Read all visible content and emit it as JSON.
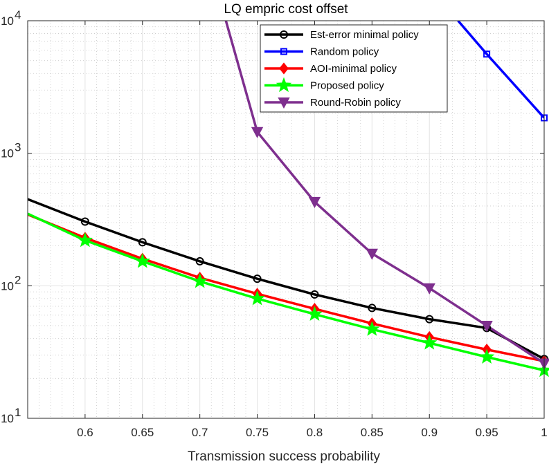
{
  "chart_data": {
    "type": "line",
    "title": "LQ empric cost offset",
    "xlabel": "Transmission success probability",
    "ylabel": "",
    "y_scale": "log",
    "xlim": [
      0.55,
      1.0
    ],
    "ylim": [
      10,
      10000
    ],
    "grid": true,
    "minor_grid": true,
    "legend_position": "top-right",
    "x_tick_labels": [
      "0.6",
      "0.65",
      "0.7",
      "0.75",
      "0.8",
      "0.85",
      "0.9",
      "0.95",
      "1"
    ],
    "y_tick_labels": [
      {
        "value": 10,
        "base": "10",
        "exp": "1"
      },
      {
        "value": 100,
        "base": "10",
        "exp": "2"
      },
      {
        "value": 1000,
        "base": "10",
        "exp": "3"
      },
      {
        "value": 10000,
        "base": "10",
        "exp": "4"
      }
    ],
    "series": [
      {
        "name": "Est-error minimal policy",
        "color": "#000000",
        "marker": "circle",
        "x": [
          0.55,
          0.6,
          0.65,
          0.7,
          0.75,
          0.8,
          0.85,
          0.9,
          0.95,
          1.0
        ],
        "y": [
          450,
          305,
          213,
          153,
          113,
          86,
          68,
          56,
          48,
          28
        ],
        "marker_from_index": 1
      },
      {
        "name": "Random policy",
        "color": "#0000ff",
        "marker": "square",
        "x": [
          0.925,
          0.95,
          1.0
        ],
        "y": [
          10000,
          5600,
          1850
        ],
        "marker_from_index": 1
      },
      {
        "name": "AOI-minimal policy",
        "color": "#ff0000",
        "marker": "diamond",
        "x": [
          0.55,
          0.6,
          0.65,
          0.7,
          0.75,
          0.8,
          0.85,
          0.9,
          0.95,
          1.0
        ],
        "y": [
          345,
          230,
          160,
          115,
          87,
          67,
          52,
          41,
          33,
          27
        ],
        "marker_from_index": 1
      },
      {
        "name": "Proposed policy",
        "color": "#00ff00",
        "marker": "star",
        "x": [
          0.55,
          0.6,
          0.65,
          0.7,
          0.75,
          0.8,
          0.85,
          0.9,
          0.95,
          1.0
        ],
        "y": [
          350,
          220,
          153,
          108,
          80,
          61,
          47,
          37,
          29,
          23
        ],
        "marker_from_index": 1
      },
      {
        "name": "Round-Robin policy",
        "color": "#7e2f8e",
        "marker": "triangle-down",
        "x": [
          0.7227,
          0.75,
          0.8,
          0.85,
          0.9,
          0.95,
          1.0
        ],
        "y": [
          10000,
          1450,
          430,
          175,
          96,
          50,
          26
        ],
        "marker_from_index": 1
      }
    ]
  }
}
